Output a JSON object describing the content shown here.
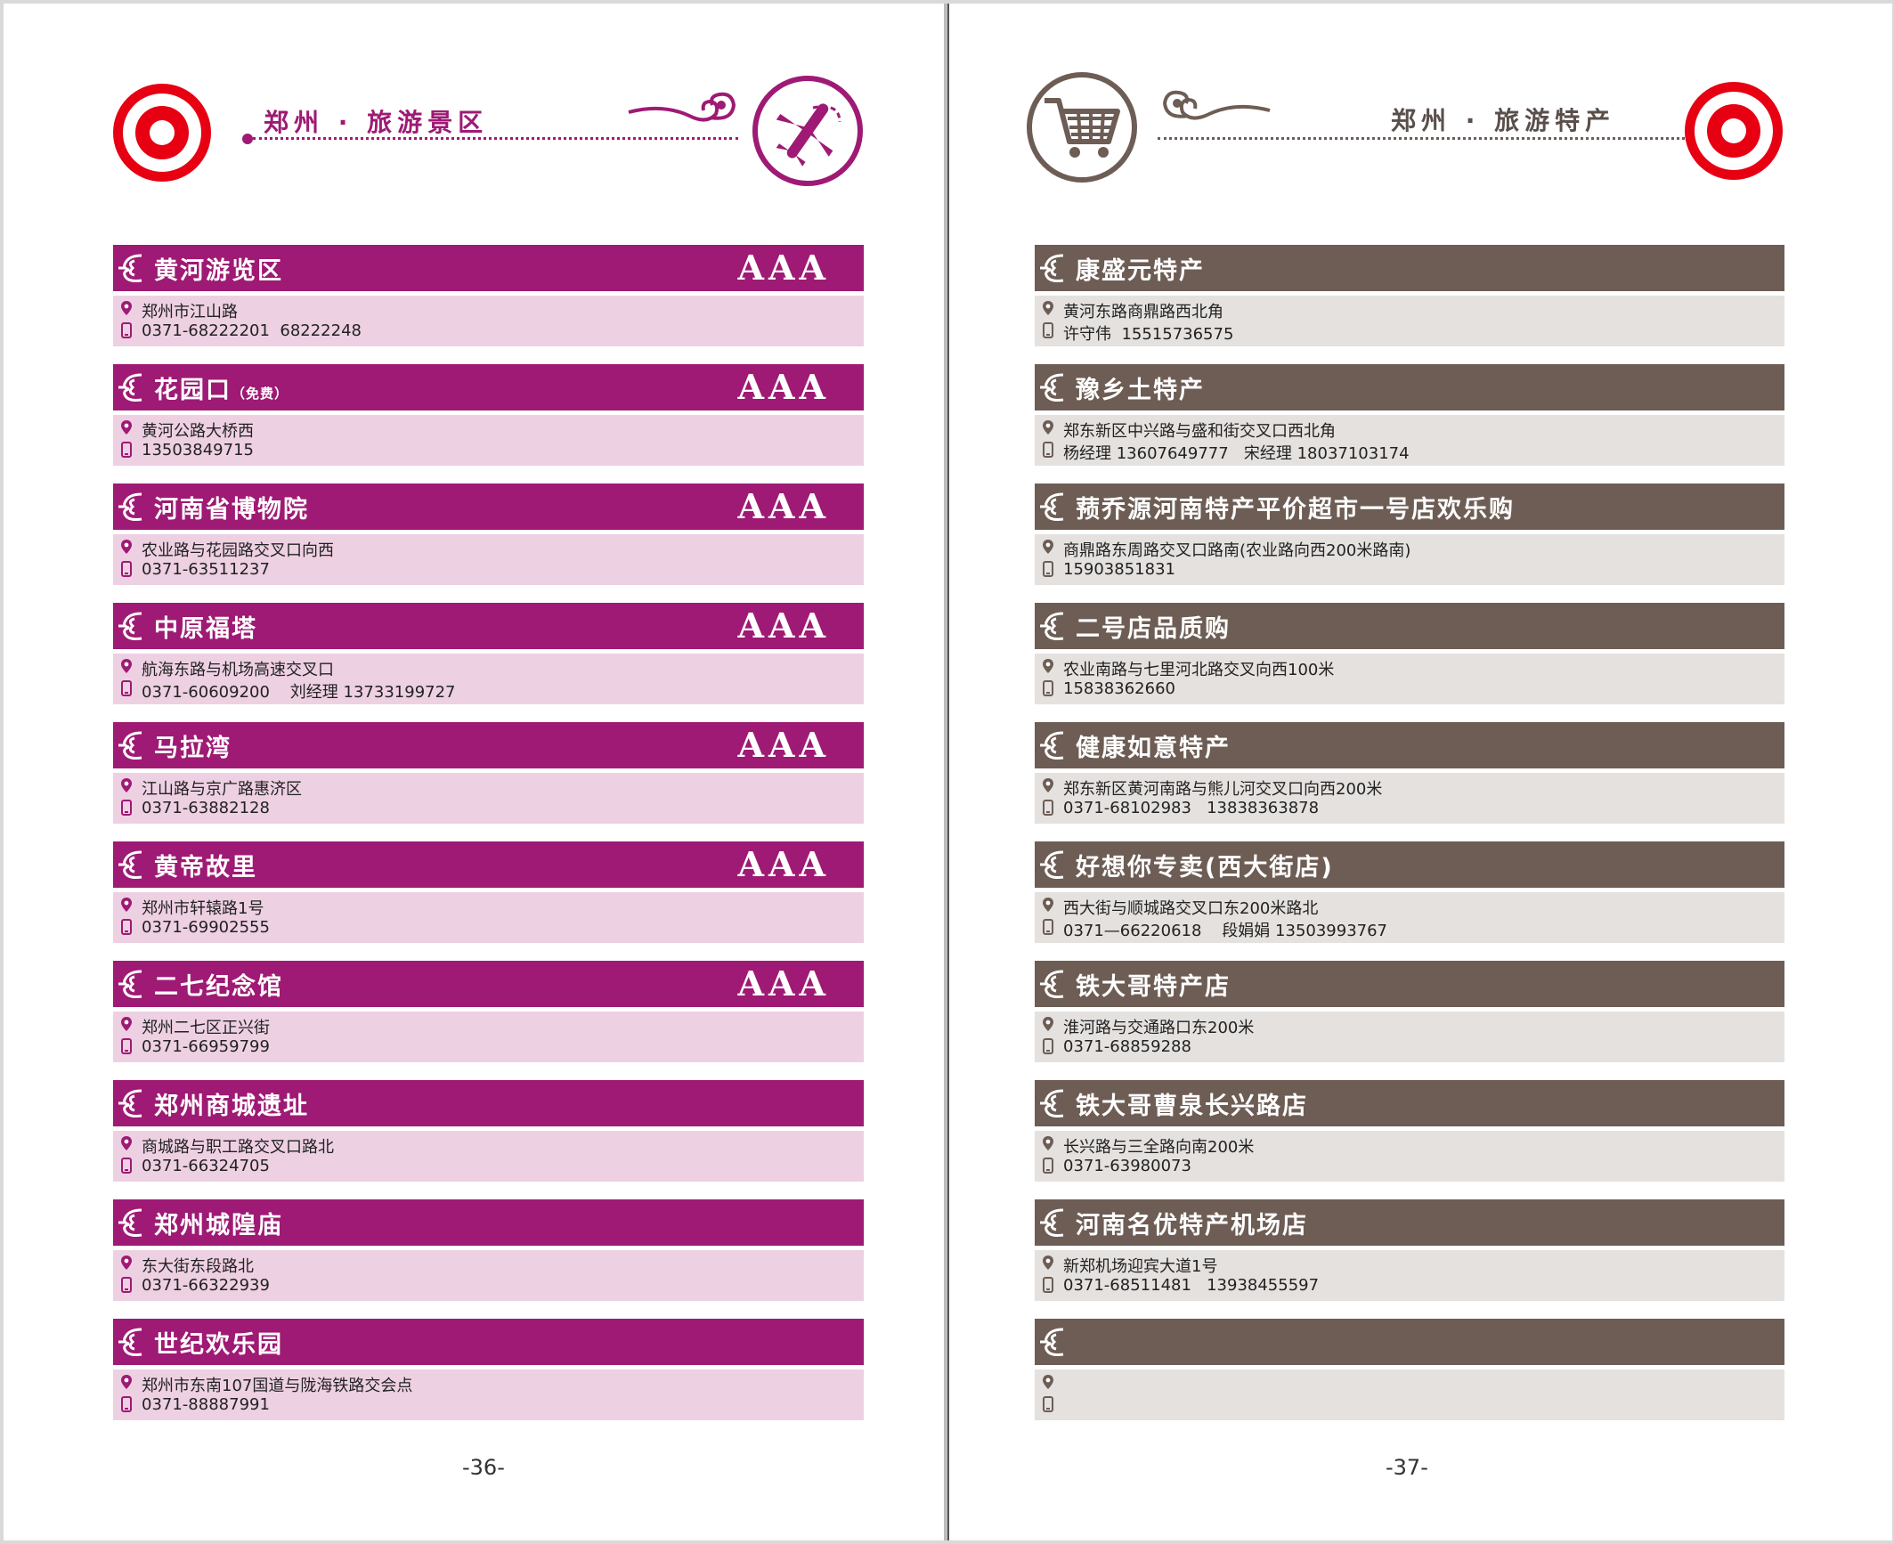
{
  "left_page": {
    "header_title": "郑州 · 旅游景区",
    "page_number": "-36-",
    "entries": [
      {
        "name": "黄河游览区",
        "note": "",
        "rating": "AAA",
        "address": "郑州市江山路",
        "phone": "0371-68222201  68222248"
      },
      {
        "name": "花园口",
        "note": "（免费）",
        "rating": "AAA",
        "address": "黄河公路大桥西",
        "phone": "13503849715"
      },
      {
        "name": "河南省博物院",
        "note": "",
        "rating": "AAA",
        "address": "农业路与花园路交叉口向西",
        "phone": "0371-63511237"
      },
      {
        "name": "中原福塔",
        "note": "",
        "rating": "AAA",
        "address": "航海东路与机场高速交叉口",
        "phone": "0371-60609200    刘经理 13733199727"
      },
      {
        "name": "马拉湾",
        "note": "",
        "rating": "AAA",
        "address": "江山路与京广路惠济区",
        "phone": "0371-63882128"
      },
      {
        "name": "黄帝故里",
        "note": "",
        "rating": "AAA",
        "address": "郑州市轩辕路1号",
        "phone": "0371-69902555"
      },
      {
        "name": "二七纪念馆",
        "note": "",
        "rating": "AAA",
        "address": "郑州二七区正兴街",
        "phone": "0371-66959799"
      },
      {
        "name": "郑州商城遗址",
        "note": "",
        "rating": "",
        "address": "商城路与职工路交叉口路北",
        "phone": "0371-66324705"
      },
      {
        "name": "郑州城隍庙",
        "note": "",
        "rating": "",
        "address": "东大街东段路北",
        "phone": "0371-66322939"
      },
      {
        "name": "世纪欢乐园",
        "note": "",
        "rating": "",
        "address": "郑州市东南107国道与陇海铁路交会点",
        "phone": "0371-88887991"
      }
    ]
  },
  "right_page": {
    "header_title": "郑州 · 旅游特产",
    "page_number": "-37-",
    "entries": [
      {
        "name": "康盛元特产",
        "address": "黄河东路商鼎路西北角",
        "phone": "许守伟  15515736575"
      },
      {
        "name": "豫乡土特产",
        "address": "郑东新区中兴路与盛和街交叉口西北角",
        "phone": "杨经理 13607649777   宋经理 18037103174"
      },
      {
        "name": "蓣乔源河南特产平价超市一号店欢乐购",
        "address": "商鼎路东周路交叉口路南(农业路向西200米路南)",
        "phone": "15903851831"
      },
      {
        "name": "二号店品质购",
        "address": "农业南路与七里河北路交叉向西100米",
        "phone": "15838362660"
      },
      {
        "name": "健康如意特产",
        "address": "郑东新区黄河南路与熊儿河交叉口向西200米",
        "phone": "0371-68102983   13838363878"
      },
      {
        "name": "好想你专卖(西大街店)",
        "address": "西大街与顺城路交叉口东200米路北",
        "phone": "0371—66220618    段娟娟 13503993767"
      },
      {
        "name": "铁大哥特产店",
        "address": "淮河路与交通路口东200米",
        "phone": "0371-68859288"
      },
      {
        "name": "铁大哥曹泉长兴路店",
        "address": "长兴路与三全路向南200米",
        "phone": "0371-63980073"
      },
      {
        "name": "河南名优特产机场店",
        "address": "新郑机场迎宾大道1号",
        "phone": "0371-68511481   13938455597"
      },
      {
        "name": "",
        "address": "",
        "phone": ""
      }
    ]
  },
  "colors": {
    "left_accent": "#9e1a74",
    "left_info_bg": "#eed0e3",
    "right_accent": "#6d5d55",
    "right_info_bg": "#e4e1df",
    "logo_red": "#e60012"
  },
  "icons": {
    "left_header": "airplane-icon",
    "right_header": "shopping-cart-icon",
    "entry_bullet": "chinese-knot-icon",
    "address": "location-pin-icon",
    "phone": "mobile-phone-icon"
  }
}
